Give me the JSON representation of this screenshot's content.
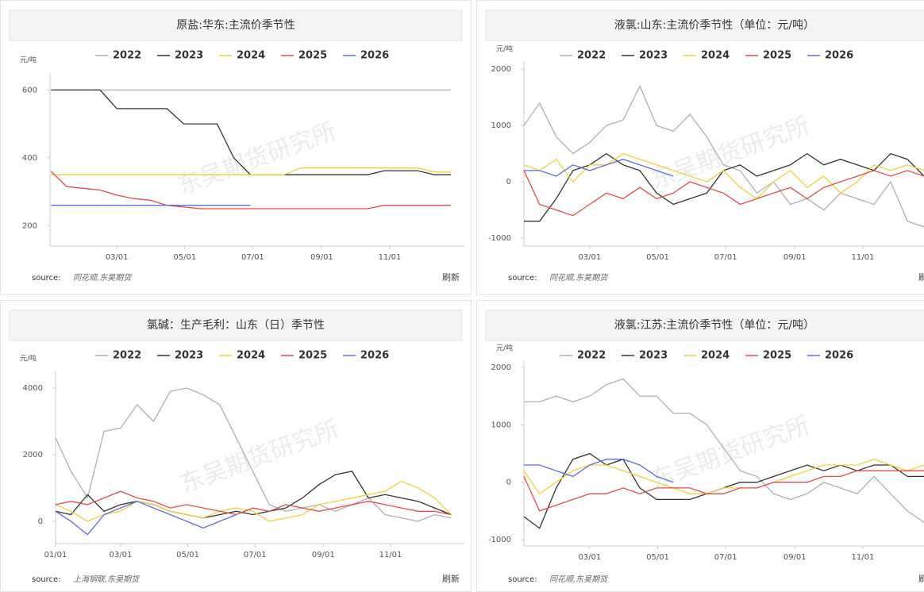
{
  "chart_data": [
    {
      "type": "line",
      "title": "原盐:华东:主流价季节性",
      "y_label": "元/吨",
      "watermark": "东吴期货研究所",
      "source_label": "source:",
      "source": "同花顺,东吴期货",
      "refresh": "刷新",
      "x": [
        1,
        15,
        30,
        45,
        60,
        75,
        90,
        105,
        120,
        135,
        150,
        165,
        180,
        195,
        210,
        225,
        240,
        255,
        270,
        285,
        300,
        315,
        330,
        345,
        360
      ],
      "xlim": [
        0,
        372
      ],
      "xticks": [
        {
          "value": 60,
          "label": "03/01"
        },
        {
          "value": 121,
          "label": "05/01"
        },
        {
          "value": 182,
          "label": "07/01"
        },
        {
          "value": 244,
          "label": "09/01"
        },
        {
          "value": 305,
          "label": "11/01"
        }
      ],
      "ylim": [
        140,
        650
      ],
      "yticks": [
        200,
        400,
        600
      ],
      "grid": false,
      "series": [
        {
          "name": "2022",
          "color": "#b0b0b0",
          "values": [
            600,
            600,
            600,
            600,
            600,
            600,
            600,
            600,
            600,
            600,
            600,
            600,
            600,
            600,
            600,
            600,
            600,
            600,
            600,
            600,
            600,
            600,
            600,
            600,
            600
          ]
        },
        {
          "name": "2023",
          "color": "#333333",
          "values": [
            600,
            600,
            600,
            600,
            545,
            545,
            545,
            545,
            500,
            500,
            500,
            400,
            350,
            350,
            350,
            350,
            350,
            350,
            350,
            350,
            362,
            362,
            362,
            350,
            350
          ]
        },
        {
          "name": "2024",
          "color": "#f2d13a",
          "values": [
            350,
            350,
            350,
            350,
            350,
            350,
            350,
            350,
            350,
            350,
            350,
            350,
            350,
            350,
            350,
            370,
            370,
            370,
            370,
            370,
            370,
            370,
            370,
            358,
            358
          ]
        },
        {
          "name": "2025",
          "color": "#e84a4a",
          "values": [
            360,
            315,
            310,
            305,
            290,
            280,
            275,
            260,
            255,
            250,
            250,
            250,
            250,
            250,
            250,
            250,
            250,
            250,
            250,
            250,
            260,
            260,
            260,
            260,
            260
          ]
        },
        {
          "name": "2026",
          "color": "#5b6ee0",
          "values": [
            260,
            260,
            260,
            260,
            260,
            260,
            260,
            260,
            260,
            260,
            260,
            260,
            260,
            null,
            null,
            null,
            null,
            null,
            null,
            null,
            null,
            null,
            null,
            null,
            null
          ]
        }
      ]
    },
    {
      "type": "line",
      "title": "液氯:山东:主流价季节性（单位：元/吨）",
      "y_label": "元/吨",
      "watermark": "东吴期货研究所",
      "source_label": "source:",
      "source": "同花顺,东吴期货",
      "refresh": "刷新",
      "x": [
        1,
        15,
        30,
        45,
        60,
        75,
        90,
        105,
        120,
        135,
        150,
        165,
        180,
        195,
        210,
        225,
        240,
        255,
        270,
        285,
        300,
        315,
        330,
        345,
        360
      ],
      "xlim": [
        1,
        372
      ],
      "xticks": [
        {
          "value": 60,
          "label": "03/01"
        },
        {
          "value": 121,
          "label": "05/01"
        },
        {
          "value": 182,
          "label": "07/01"
        },
        {
          "value": 244,
          "label": "09/01"
        },
        {
          "value": 305,
          "label": "11/01"
        }
      ],
      "ylim": [
        -1140,
        2130
      ],
      "yticks": [
        -1000,
        0,
        1000,
        2000
      ],
      "grid": false,
      "series": [
        {
          "name": "2022",
          "color": "#b0b0b0",
          "values": [
            1000,
            1400,
            800,
            500,
            700,
            1000,
            1100,
            1700,
            1000,
            900,
            1200,
            800,
            300,
            200,
            -200,
            0,
            -400,
            -300,
            -500,
            -200,
            -300,
            -400,
            0,
            -700,
            -800
          ]
        },
        {
          "name": "2023",
          "color": "#333333",
          "values": [
            -700,
            -700,
            -300,
            200,
            300,
            500,
            300,
            200,
            -200,
            -400,
            -300,
            -200,
            200,
            300,
            100,
            200,
            300,
            500,
            300,
            400,
            300,
            200,
            500,
            400,
            100
          ]
        },
        {
          "name": "2024",
          "color": "#f2d13a",
          "values": [
            300,
            200,
            400,
            0,
            300,
            300,
            500,
            400,
            300,
            200,
            100,
            0,
            200,
            -100,
            -300,
            0,
            200,
            -100,
            100,
            -200,
            0,
            300,
            200,
            300,
            200
          ]
        },
        {
          "name": "2025",
          "color": "#e84a4a",
          "values": [
            200,
            -400,
            -500,
            -600,
            -400,
            -200,
            -300,
            -100,
            -300,
            -200,
            0,
            -100,
            -200,
            -400,
            -300,
            -200,
            -100,
            -300,
            -100,
            0,
            100,
            200,
            100,
            200,
            100
          ]
        },
        {
          "name": "2026",
          "color": "#5b6ee0",
          "values": [
            200,
            200,
            100,
            300,
            200,
            300,
            400,
            300,
            200,
            100,
            null,
            null,
            null,
            null,
            null,
            null,
            null,
            null,
            null,
            null,
            null,
            null,
            null,
            null,
            null
          ]
        }
      ]
    },
    {
      "type": "line",
      "title": "氯碱：生产毛利：山东（日）季节性",
      "y_label": "元/吨",
      "watermark": "东吴期货研究所",
      "source_label": "source:",
      "source": "上海钢联,东吴期货",
      "refresh": "刷新",
      "x": [
        1,
        15,
        30,
        45,
        60,
        75,
        90,
        105,
        120,
        135,
        150,
        165,
        180,
        195,
        210,
        225,
        240,
        255,
        270,
        285,
        300,
        315,
        330,
        345,
        360
      ],
      "xlim": [
        1,
        372
      ],
      "xticks": [
        {
          "value": 1,
          "label": "01/01"
        },
        {
          "value": 60,
          "label": "03/01"
        },
        {
          "value": 121,
          "label": "05/01"
        },
        {
          "value": 182,
          "label": "07/01"
        },
        {
          "value": 244,
          "label": "09/01"
        },
        {
          "value": 305,
          "label": "11/01"
        }
      ],
      "ylim": [
        -670,
        4500
      ],
      "yticks": [
        0,
        2000,
        4000
      ],
      "grid": false,
      "series": [
        {
          "name": "2022",
          "color": "#b0b0b0",
          "values": [
            2500,
            1500,
            700,
            2700,
            2800,
            3500,
            3000,
            3900,
            4000,
            3800,
            3500,
            2500,
            1500,
            500,
            300,
            400,
            500,
            300,
            500,
            700,
            200,
            100,
            0,
            200,
            100
          ]
        },
        {
          "name": "2023",
          "color": "#333333",
          "values": [
            300,
            200,
            800,
            300,
            500,
            600,
            500,
            300,
            200,
            100,
            200,
            300,
            200,
            300,
            400,
            700,
            1100,
            1400,
            1500,
            700,
            800,
            700,
            600,
            400,
            200
          ]
        },
        {
          "name": "2024",
          "color": "#f2d13a",
          "values": [
            500,
            300,
            0,
            200,
            300,
            600,
            500,
            300,
            200,
            100,
            300,
            400,
            300,
            0,
            100,
            200,
            500,
            600,
            700,
            800,
            900,
            1200,
            1000,
            700,
            200
          ]
        },
        {
          "name": "2025",
          "color": "#e84a4a",
          "values": [
            500,
            600,
            500,
            700,
            900,
            700,
            600,
            400,
            500,
            400,
            300,
            200,
            400,
            300,
            500,
            400,
            300,
            400,
            500,
            600,
            500,
            400,
            300,
            300,
            200
          ]
        },
        {
          "name": "2026",
          "color": "#5b6ee0",
          "values": [
            300,
            0,
            -400,
            200,
            400,
            600,
            400,
            200,
            0,
            -200,
            0,
            200,
            null,
            null,
            null,
            null,
            null,
            null,
            null,
            null,
            null,
            null,
            null,
            null,
            null
          ]
        }
      ]
    },
    {
      "type": "line",
      "title": "液氯:江苏:主流价季节性（单位：元/吨）",
      "y_label": "元/吨",
      "watermark": "东吴期货研究所",
      "source_label": "source:",
      "source": "同花顺,东吴期货",
      "refresh": "刷新",
      "x": [
        1,
        15,
        30,
        45,
        60,
        75,
        90,
        105,
        120,
        135,
        150,
        165,
        180,
        195,
        210,
        225,
        240,
        255,
        270,
        285,
        300,
        315,
        330,
        345,
        360
      ],
      "xlim": [
        1,
        372
      ],
      "xticks": [
        {
          "value": 60,
          "label": "03/01"
        },
        {
          "value": 121,
          "label": "05/01"
        },
        {
          "value": 182,
          "label": "07/01"
        },
        {
          "value": 244,
          "label": "09/01"
        },
        {
          "value": 305,
          "label": "11/01"
        }
      ],
      "ylim": [
        -1110,
        2110
      ],
      "yticks": [
        -1000,
        0,
        1000,
        2000
      ],
      "grid": false,
      "series": [
        {
          "name": "2022",
          "color": "#b0b0b0",
          "values": [
            1400,
            1400,
            1500,
            1400,
            1500,
            1700,
            1800,
            1500,
            1500,
            1200,
            1200,
            1000,
            600,
            200,
            100,
            -200,
            -300,
            -200,
            0,
            -100,
            -200,
            100,
            -200,
            -500,
            -700
          ]
        },
        {
          "name": "2023",
          "color": "#333333",
          "values": [
            -600,
            -800,
            -100,
            400,
            500,
            300,
            400,
            -100,
            -300,
            -300,
            -300,
            -200,
            -100,
            0,
            0,
            100,
            200,
            300,
            200,
            300,
            200,
            300,
            300,
            100,
            100
          ]
        },
        {
          "name": "2024",
          "color": "#f2d13a",
          "values": [
            200,
            -200,
            0,
            200,
            300,
            300,
            200,
            100,
            0,
            -100,
            -200,
            -200,
            -100,
            -100,
            -100,
            0,
            100,
            200,
            300,
            300,
            300,
            400,
            300,
            200,
            300
          ]
        },
        {
          "name": "2025",
          "color": "#e84a4a",
          "values": [
            100,
            -500,
            -400,
            -300,
            -200,
            -200,
            -100,
            -200,
            -100,
            -100,
            -100,
            -200,
            -200,
            -100,
            -100,
            0,
            0,
            0,
            100,
            100,
            200,
            200,
            200,
            200,
            200
          ]
        },
        {
          "name": "2026",
          "color": "#5b6ee0",
          "values": [
            300,
            300,
            200,
            100,
            300,
            400,
            400,
            300,
            100,
            0,
            null,
            null,
            null,
            null,
            null,
            null,
            null,
            null,
            null,
            null,
            null,
            null,
            null,
            null,
            null
          ]
        }
      ]
    }
  ]
}
